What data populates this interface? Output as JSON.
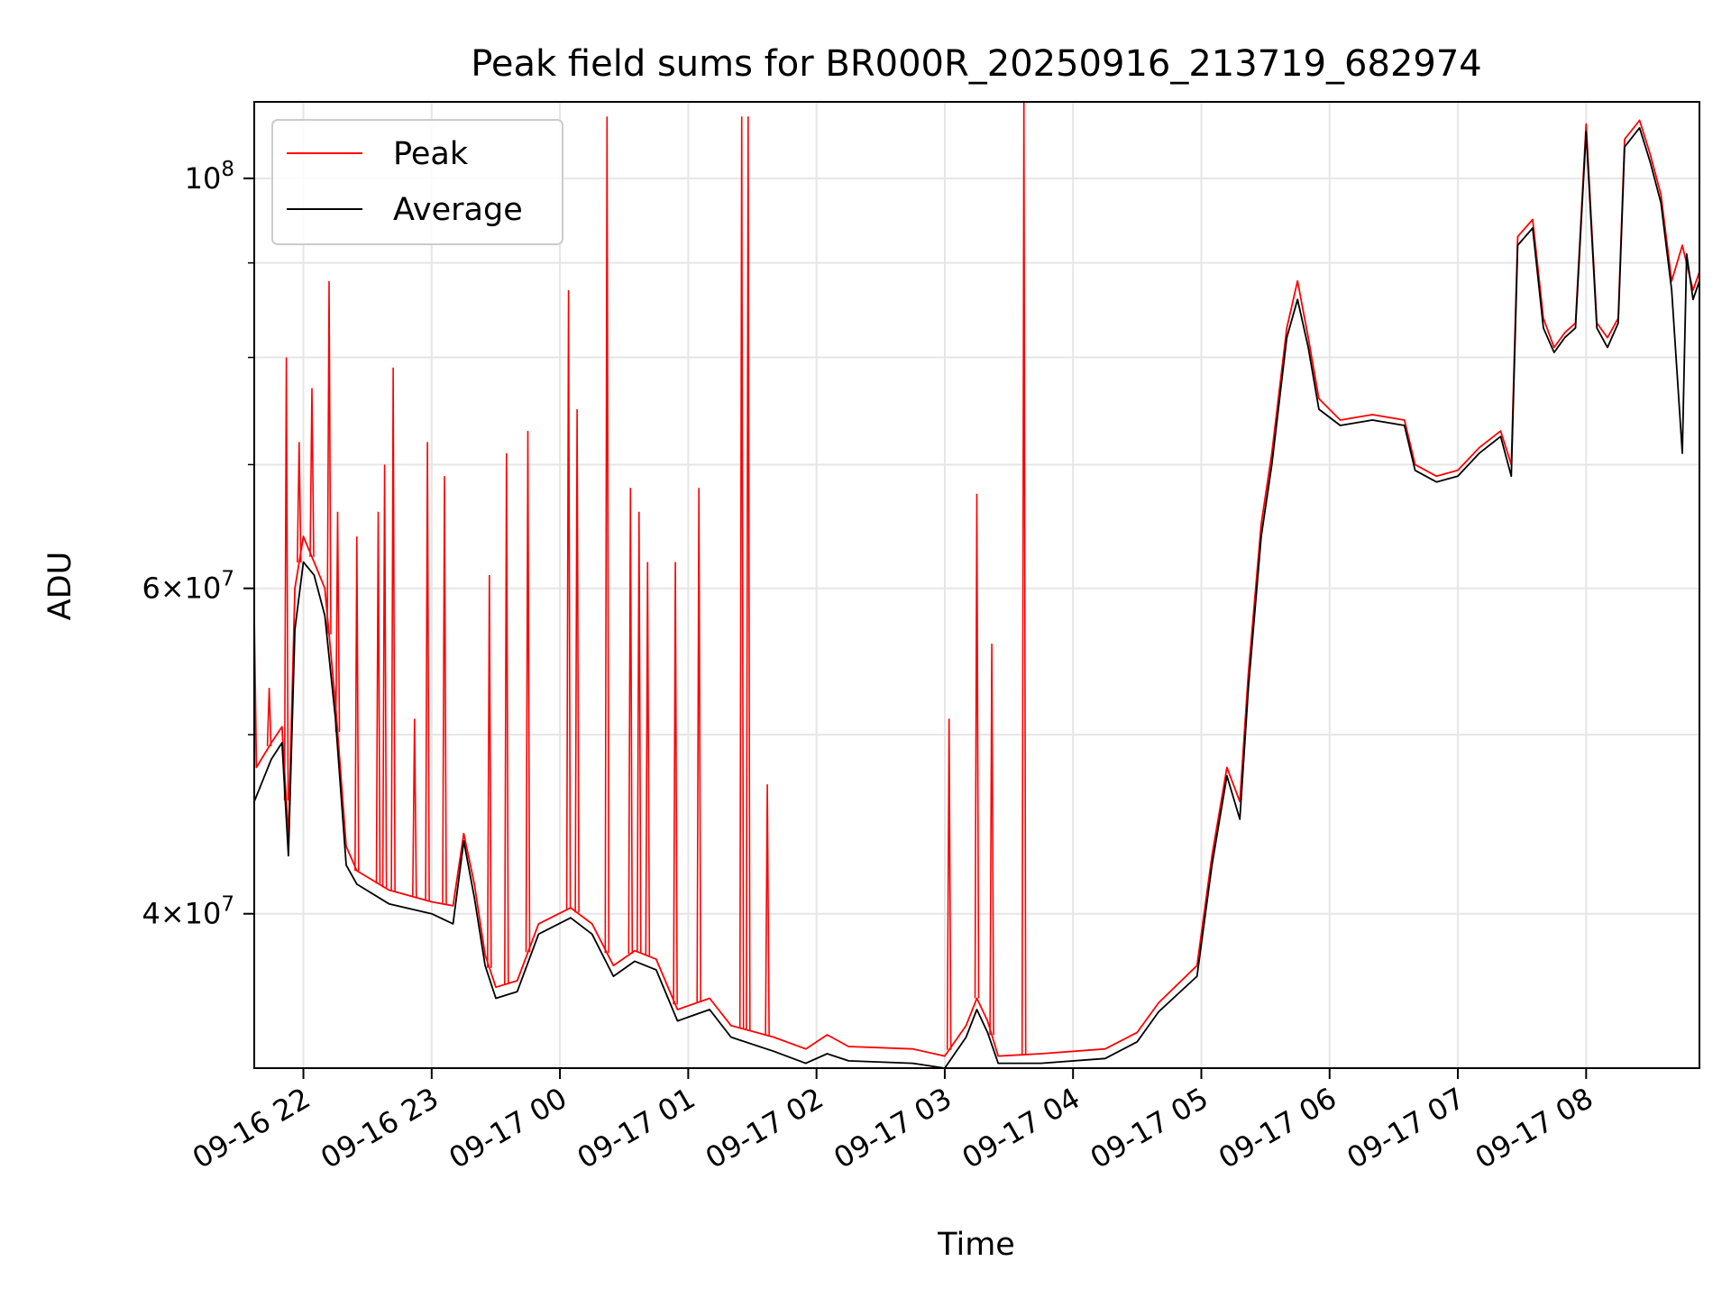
{
  "chart_data": {
    "type": "line",
    "title": "Peak field sums for BR000R_20250916_213719_682974",
    "xlabel": "Time",
    "ylabel": "ADU",
    "y_scale": "log",
    "grid": true,
    "legend_position": "upper left",
    "xlim": [
      "2025-09-16 21:37",
      "2025-09-17 08:53"
    ],
    "ylim": [
      33000000,
      110000000
    ],
    "x_ticks": [
      {
        "t": "2025-09-16 22:00",
        "label": "09-16 22"
      },
      {
        "t": "2025-09-16 23:00",
        "label": "09-16 23"
      },
      {
        "t": "2025-09-17 00:00",
        "label": "09-17 00"
      },
      {
        "t": "2025-09-17 01:00",
        "label": "09-17 01"
      },
      {
        "t": "2025-09-17 02:00",
        "label": "09-17 02"
      },
      {
        "t": "2025-09-17 03:00",
        "label": "09-17 03"
      },
      {
        "t": "2025-09-17 04:00",
        "label": "09-17 04"
      },
      {
        "t": "2025-09-17 05:00",
        "label": "09-17 05"
      },
      {
        "t": "2025-09-17 06:00",
        "label": "09-17 06"
      },
      {
        "t": "2025-09-17 07:00",
        "label": "09-17 07"
      },
      {
        "t": "2025-09-17 08:00",
        "label": "09-17 08"
      }
    ],
    "y_ticks_major": [
      {
        "value": 40000000,
        "base": "4",
        "exp": "7"
      },
      {
        "value": 60000000,
        "base": "6",
        "exp": "7"
      },
      {
        "value": 100000000,
        "base": "",
        "exp": "8"
      }
    ],
    "y_ticks_minor": [
      50000000,
      70000000,
      80000000,
      90000000
    ],
    "series": [
      {
        "name": "Peak",
        "color": "#ff0000",
        "points": [
          [
            "2025-09-16 21:37",
            58000000
          ],
          [
            "2025-09-16 21:38",
            48000000
          ],
          [
            "2025-09-16 21:45",
            49500000
          ],
          [
            "2025-09-16 21:50",
            50500000
          ],
          [
            "2025-09-16 21:53",
            44000000
          ],
          [
            "2025-09-16 21:56",
            60000000
          ],
          [
            "2025-09-16 22:00",
            64000000
          ],
          [
            "2025-09-16 22:05",
            62000000
          ],
          [
            "2025-09-16 22:10",
            60000000
          ],
          [
            "2025-09-16 22:15",
            52000000
          ],
          [
            "2025-09-16 22:20",
            43500000
          ],
          [
            "2025-09-16 22:25",
            42200000
          ],
          [
            "2025-09-16 22:40",
            41200000
          ],
          [
            "2025-09-16 23:00",
            40600000
          ],
          [
            "2025-09-16 23:10",
            40400000
          ],
          [
            "2025-09-16 23:15",
            44200000
          ],
          [
            "2025-09-16 23:20",
            41500000
          ],
          [
            "2025-09-16 23:25",
            38000000
          ],
          [
            "2025-09-16 23:30",
            36500000
          ],
          [
            "2025-09-16 23:40",
            36800000
          ],
          [
            "2025-09-16 23:50",
            39500000
          ],
          [
            "2025-09-17 00:05",
            40300000
          ],
          [
            "2025-09-17 00:15",
            39500000
          ],
          [
            "2025-09-17 00:25",
            37500000
          ],
          [
            "2025-09-17 00:35",
            38200000
          ],
          [
            "2025-09-17 00:45",
            37800000
          ],
          [
            "2025-09-17 00:55",
            35500000
          ],
          [
            "2025-09-17 01:10",
            36000000
          ],
          [
            "2025-09-17 01:20",
            34800000
          ],
          [
            "2025-09-17 01:40",
            34300000
          ],
          [
            "2025-09-17 01:55",
            33800000
          ],
          [
            "2025-09-17 02:05",
            34400000
          ],
          [
            "2025-09-17 02:15",
            33900000
          ],
          [
            "2025-09-17 02:45",
            33800000
          ],
          [
            "2025-09-17 03:00",
            33500000
          ],
          [
            "2025-09-17 03:10",
            34800000
          ],
          [
            "2025-09-17 03:15",
            36000000
          ],
          [
            "2025-09-17 03:20",
            35000000
          ],
          [
            "2025-09-17 03:25",
            33500000
          ],
          [
            "2025-09-17 03:45",
            33600000
          ],
          [
            "2025-09-17 04:15",
            33800000
          ],
          [
            "2025-09-17 04:30",
            34500000
          ],
          [
            "2025-09-17 04:40",
            35800000
          ],
          [
            "2025-09-17 04:58",
            37500000
          ],
          [
            "2025-09-17 05:05",
            43000000
          ],
          [
            "2025-09-17 05:12",
            48000000
          ],
          [
            "2025-09-17 05:18",
            46000000
          ],
          [
            "2025-09-17 05:22",
            54000000
          ],
          [
            "2025-09-17 05:28",
            65000000
          ],
          [
            "2025-09-17 05:33",
            71000000
          ],
          [
            "2025-09-17 05:40",
            83000000
          ],
          [
            "2025-09-17 05:45",
            88000000
          ],
          [
            "2025-09-17 05:50",
            82000000
          ],
          [
            "2025-09-17 05:55",
            76000000
          ],
          [
            "2025-09-17 06:05",
            74000000
          ],
          [
            "2025-09-17 06:20",
            74500000
          ],
          [
            "2025-09-17 06:35",
            74000000
          ],
          [
            "2025-09-17 06:40",
            70000000
          ],
          [
            "2025-09-17 06:50",
            69000000
          ],
          [
            "2025-09-17 07:00",
            69500000
          ],
          [
            "2025-09-17 07:10",
            71500000
          ],
          [
            "2025-09-17 07:20",
            73000000
          ],
          [
            "2025-09-17 07:25",
            70000000
          ],
          [
            "2025-09-17 07:28",
            93000000
          ],
          [
            "2025-09-17 07:35",
            95000000
          ],
          [
            "2025-09-17 07:40",
            84000000
          ],
          [
            "2025-09-17 07:45",
            81000000
          ],
          [
            "2025-09-17 07:50",
            82500000
          ],
          [
            "2025-09-17 07:55",
            83500000
          ],
          [
            "2025-09-17 08:00",
            107000000
          ],
          [
            "2025-09-17 08:05",
            83500000
          ],
          [
            "2025-09-17 08:10",
            82000000
          ],
          [
            "2025-09-17 08:15",
            84000000
          ],
          [
            "2025-09-17 08:18",
            105000000
          ],
          [
            "2025-09-17 08:25",
            107500000
          ],
          [
            "2025-09-17 08:30",
            103000000
          ],
          [
            "2025-09-17 08:35",
            98000000
          ],
          [
            "2025-09-17 08:40",
            88000000
          ],
          [
            "2025-09-17 08:45",
            92000000
          ],
          [
            "2025-09-17 08:50",
            87000000
          ],
          [
            "2025-09-17 08:53",
            89000000
          ]
        ],
        "spikes": [
          [
            "2025-09-16 21:44",
            53000000
          ],
          [
            "2025-09-16 21:52",
            80000000
          ],
          [
            "2025-09-16 21:58",
            72000000
          ],
          [
            "2025-09-16 22:04",
            77000000
          ],
          [
            "2025-09-16 22:12",
            88000000
          ],
          [
            "2025-09-16 22:16",
            66000000
          ],
          [
            "2025-09-16 22:25",
            64000000
          ],
          [
            "2025-09-16 22:35",
            66000000
          ],
          [
            "2025-09-16 22:38",
            70000000
          ],
          [
            "2025-09-16 22:42",
            79000000
          ],
          [
            "2025-09-16 22:52",
            51000000
          ],
          [
            "2025-09-16 22:58",
            72000000
          ],
          [
            "2025-09-16 23:06",
            69000000
          ],
          [
            "2025-09-16 23:27",
            61000000
          ],
          [
            "2025-09-16 23:35",
            71000000
          ],
          [
            "2025-09-16 23:45",
            73000000
          ],
          [
            "2025-09-17 00:04",
            87000000
          ],
          [
            "2025-09-17 00:08",
            75000000
          ],
          [
            "2025-09-17 00:22",
            108000000
          ],
          [
            "2025-09-17 00:33",
            68000000
          ],
          [
            "2025-09-17 00:37",
            66000000
          ],
          [
            "2025-09-17 00:41",
            62000000
          ],
          [
            "2025-09-17 00:54",
            62000000
          ],
          [
            "2025-09-17 01:05",
            68000000
          ],
          [
            "2025-09-17 01:25",
            108000000
          ],
          [
            "2025-09-17 01:28",
            108000000
          ],
          [
            "2025-09-17 01:37",
            47000000
          ],
          [
            "2025-09-17 03:02",
            51000000
          ],
          [
            "2025-09-17 03:15",
            67500000
          ],
          [
            "2025-09-17 03:22",
            56000000
          ],
          [
            "2025-09-17 03:37",
            112000000
          ]
        ]
      },
      {
        "name": "Average",
        "color": "#000000",
        "points": [
          [
            "2025-09-16 21:37",
            46000000
          ],
          [
            "2025-09-16 21:45",
            48500000
          ],
          [
            "2025-09-16 21:50",
            49500000
          ],
          [
            "2025-09-16 21:53",
            43000000
          ],
          [
            "2025-09-16 21:56",
            57000000
          ],
          [
            "2025-09-16 22:00",
            62000000
          ],
          [
            "2025-09-16 22:05",
            61000000
          ],
          [
            "2025-09-16 22:10",
            58000000
          ],
          [
            "2025-09-16 22:15",
            51000000
          ],
          [
            "2025-09-16 22:20",
            42500000
          ],
          [
            "2025-09-16 22:25",
            41500000
          ],
          [
            "2025-09-16 22:40",
            40500000
          ],
          [
            "2025-09-16 23:00",
            40000000
          ],
          [
            "2025-09-16 23:10",
            39500000
          ],
          [
            "2025-09-16 23:15",
            43800000
          ],
          [
            "2025-09-16 23:20",
            40800000
          ],
          [
            "2025-09-16 23:25",
            37500000
          ],
          [
            "2025-09-16 23:30",
            36000000
          ],
          [
            "2025-09-16 23:40",
            36300000
          ],
          [
            "2025-09-16 23:50",
            39000000
          ],
          [
            "2025-09-17 00:05",
            39800000
          ],
          [
            "2025-09-17 00:15",
            39000000
          ],
          [
            "2025-09-17 00:25",
            37000000
          ],
          [
            "2025-09-17 00:35",
            37700000
          ],
          [
            "2025-09-17 00:45",
            37300000
          ],
          [
            "2025-09-17 00:55",
            35000000
          ],
          [
            "2025-09-17 01:10",
            35500000
          ],
          [
            "2025-09-17 01:20",
            34300000
          ],
          [
            "2025-09-17 01:40",
            33700000
          ],
          [
            "2025-09-17 01:55",
            33200000
          ],
          [
            "2025-09-17 02:05",
            33600000
          ],
          [
            "2025-09-17 02:15",
            33300000
          ],
          [
            "2025-09-17 02:45",
            33200000
          ],
          [
            "2025-09-17 03:00",
            33000000
          ],
          [
            "2025-09-17 03:10",
            34300000
          ],
          [
            "2025-09-17 03:15",
            35500000
          ],
          [
            "2025-09-17 03:20",
            34500000
          ],
          [
            "2025-09-17 03:25",
            33200000
          ],
          [
            "2025-09-17 03:45",
            33200000
          ],
          [
            "2025-09-17 04:15",
            33400000
          ],
          [
            "2025-09-17 04:30",
            34100000
          ],
          [
            "2025-09-17 04:40",
            35400000
          ],
          [
            "2025-09-17 04:58",
            37000000
          ],
          [
            "2025-09-17 05:05",
            42500000
          ],
          [
            "2025-09-17 05:12",
            47500000
          ],
          [
            "2025-09-17 05:18",
            45000000
          ],
          [
            "2025-09-17 05:22",
            53000000
          ],
          [
            "2025-09-17 05:28",
            64000000
          ],
          [
            "2025-09-17 05:33",
            70000000
          ],
          [
            "2025-09-17 05:40",
            82000000
          ],
          [
            "2025-09-17 05:45",
            86000000
          ],
          [
            "2025-09-17 05:50",
            81000000
          ],
          [
            "2025-09-17 05:55",
            75000000
          ],
          [
            "2025-09-17 06:05",
            73500000
          ],
          [
            "2025-09-17 06:20",
            74000000
          ],
          [
            "2025-09-17 06:35",
            73500000
          ],
          [
            "2025-09-17 06:40",
            69500000
          ],
          [
            "2025-09-17 06:50",
            68500000
          ],
          [
            "2025-09-17 07:00",
            69000000
          ],
          [
            "2025-09-17 07:10",
            71000000
          ],
          [
            "2025-09-17 07:20",
            72500000
          ],
          [
            "2025-09-17 07:25",
            69000000
          ],
          [
            "2025-09-17 07:28",
            92000000
          ],
          [
            "2025-09-17 07:35",
            94000000
          ],
          [
            "2025-09-17 07:40",
            83000000
          ],
          [
            "2025-09-17 07:45",
            80500000
          ],
          [
            "2025-09-17 07:50",
            82000000
          ],
          [
            "2025-09-17 07:55",
            83000000
          ],
          [
            "2025-09-17 08:00",
            106000000
          ],
          [
            "2025-09-17 08:05",
            83000000
          ],
          [
            "2025-09-17 08:10",
            81000000
          ],
          [
            "2025-09-17 08:15",
            83500000
          ],
          [
            "2025-09-17 08:18",
            104000000
          ],
          [
            "2025-09-17 08:25",
            106500000
          ],
          [
            "2025-09-17 08:30",
            102000000
          ],
          [
            "2025-09-17 08:35",
            97000000
          ],
          [
            "2025-09-17 08:40",
            87000000
          ],
          [
            "2025-09-17 08:45",
            71000000
          ],
          [
            "2025-09-17 08:47",
            91000000
          ],
          [
            "2025-09-17 08:50",
            86000000
          ],
          [
            "2025-09-17 08:53",
            88000000
          ]
        ]
      }
    ]
  }
}
